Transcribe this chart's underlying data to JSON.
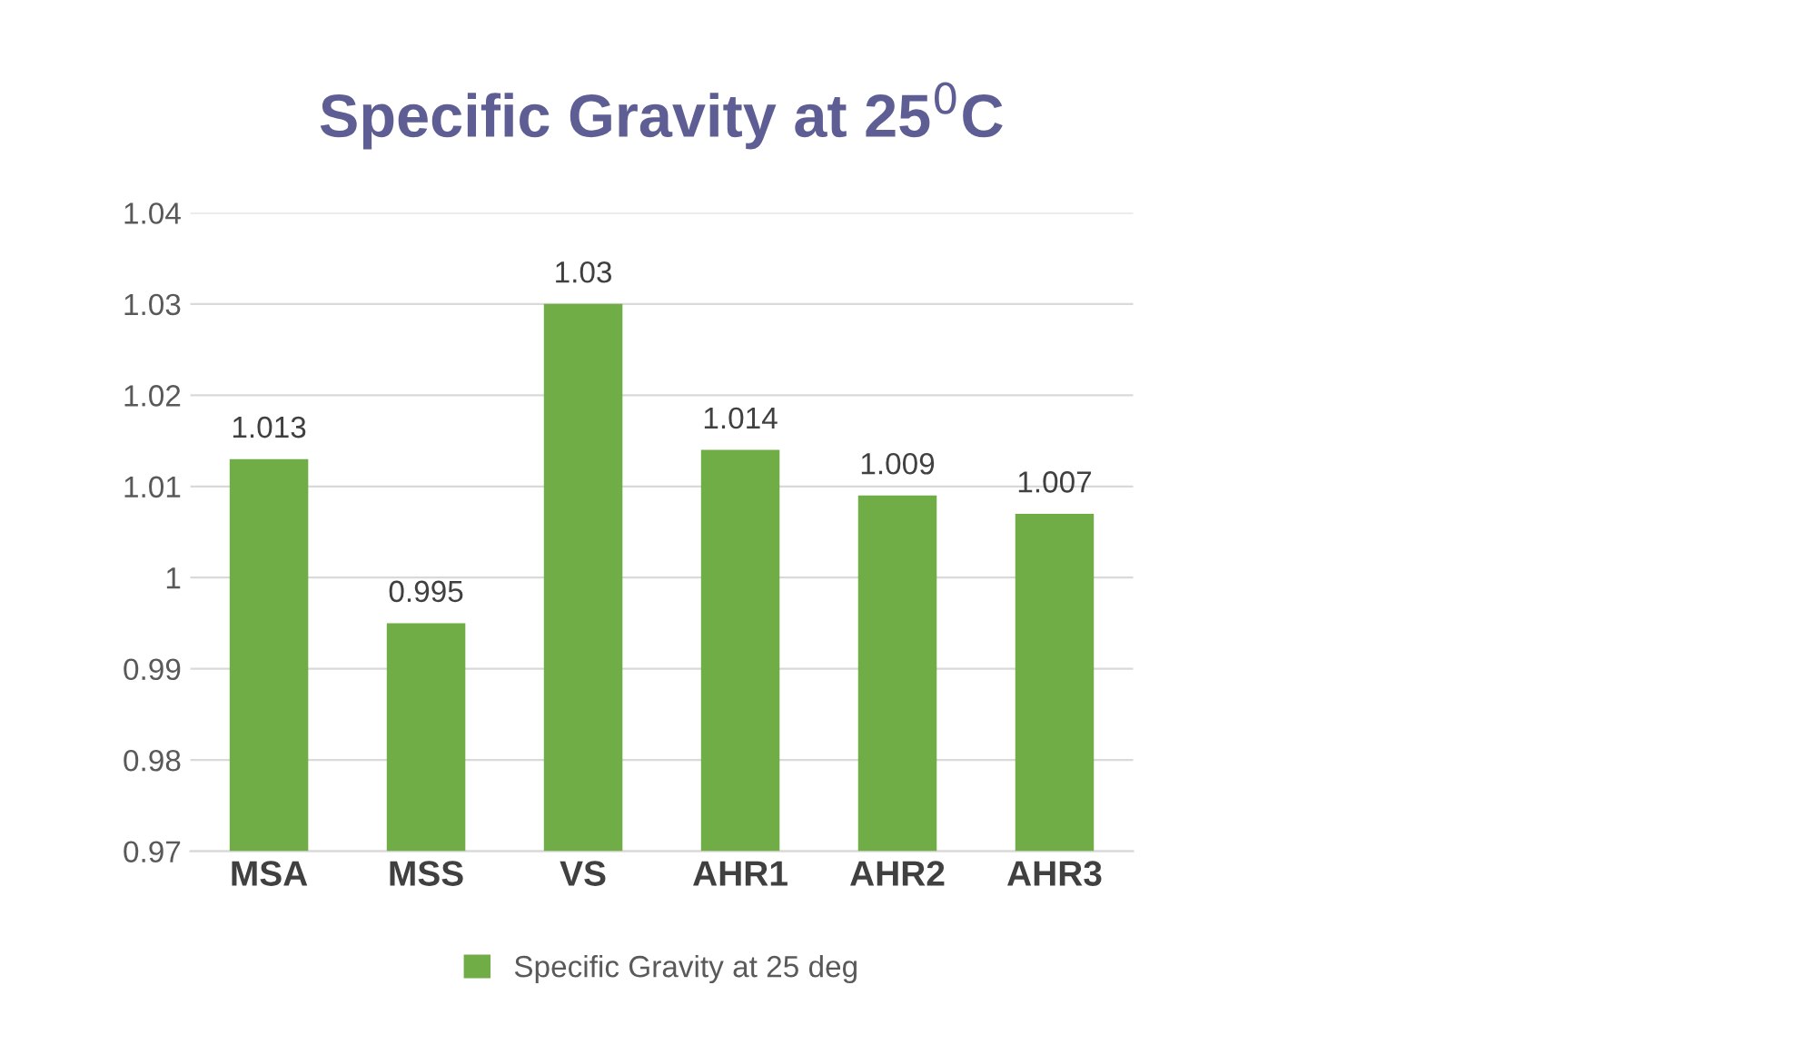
{
  "chart_data": {
    "type": "bar",
    "title": "Specific Gravity at 25$^{0}$C",
    "categories": [
      "MSA",
      "MSS",
      "VS",
      "AHR1",
      "AHR2",
      "AHR3"
    ],
    "series": [
      {
        "name": "Specific Gravity at 25 deg",
        "color": "#70ad47",
        "values": [
          1.013,
          0.995,
          1.03,
          1.014,
          1.009,
          1.007
        ]
      }
    ],
    "ylim": [
      0.97,
      1.04
    ],
    "yticks": [
      0.97,
      0.98,
      0.99,
      1,
      1.01,
      1.02,
      1.03,
      1.04
    ],
    "grid": "y",
    "legend": "bottom",
    "data_labels": true
  }
}
